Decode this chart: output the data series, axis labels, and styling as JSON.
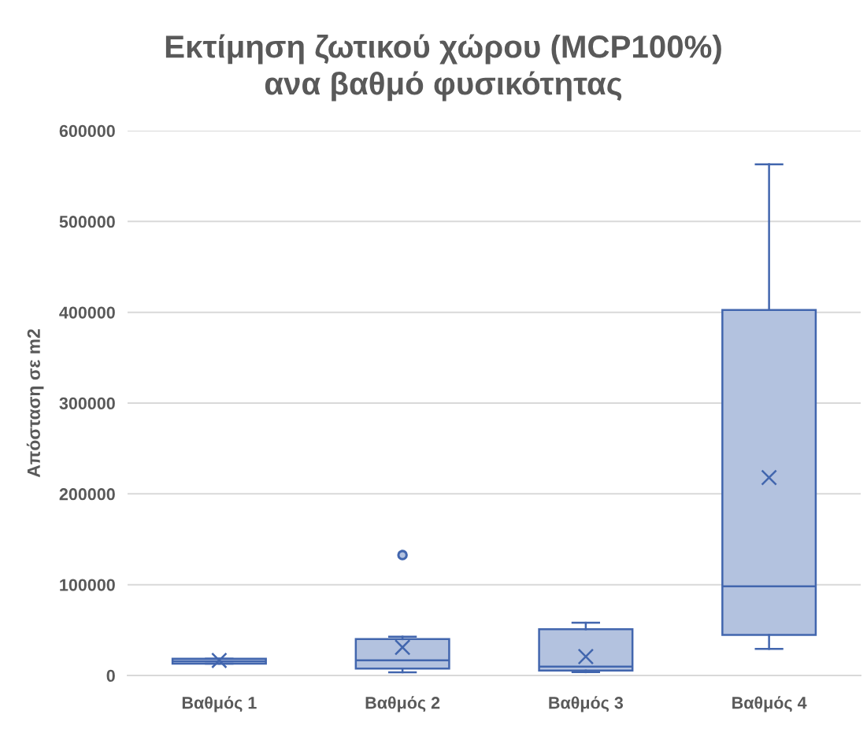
{
  "chart_data": {
    "type": "box",
    "title": "Εκτίμηση ζωτικού χώρου (MCP100%)\nανα βαθμό φυσικότητας",
    "ylabel": "Απόσταση σε m2",
    "categories": [
      "Βαθμός 1",
      "Βαθμός 2",
      "Βαθμός 3",
      "Βαθμός 4"
    ],
    "series": [
      {
        "color": "#4266ae",
        "boxes": [
          {
            "low": 13000,
            "q1": 13000,
            "median": 15500,
            "q3": 18500,
            "high": 18500,
            "mean": 16500
          },
          {
            "low": 3500,
            "q1": 7500,
            "median": 16700,
            "q3": 40000,
            "high": 42700,
            "mean": 31000,
            "outliers": [
              132600
            ]
          },
          {
            "low": 3600,
            "q1": 5400,
            "median": 9800,
            "q3": 50900,
            "high": 58000,
            "mean": 20800
          },
          {
            "low": 29300,
            "q1": 44600,
            "median": 98200,
            "q3": 402500,
            "high": 563000,
            "mean": 218000
          }
        ]
      }
    ],
    "ylim": [
      0,
      600000
    ],
    "yticks": [
      0,
      100000,
      200000,
      300000,
      400000,
      500000,
      600000
    ],
    "grid": "y"
  }
}
